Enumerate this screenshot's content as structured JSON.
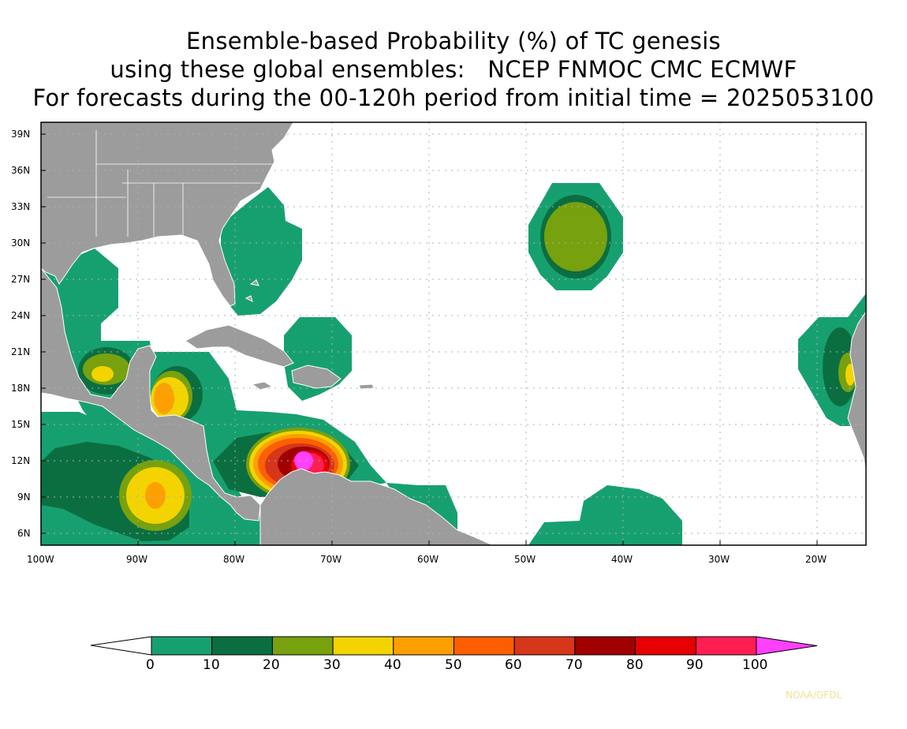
{
  "title": {
    "line1": "Ensemble-based Probability (%) of TC genesis",
    "line2": "using these global ensembles:   NCEP FNMOC CMC ECMWF",
    "line3": "For forecasts during the 00-120h period from initial time = 2025053100"
  },
  "map": {
    "lat_labels": [
      "39N",
      "36N",
      "33N",
      "30N",
      "27N",
      "24N",
      "21N",
      "18N",
      "15N",
      "12N",
      "9N",
      "6N"
    ],
    "lon_labels": [
      "100W",
      "90W",
      "80W",
      "70W",
      "60W",
      "50W",
      "40W",
      "30W",
      "20W"
    ],
    "land_color": "#9c9c9c",
    "ocean_color": "#ffffff",
    "grid": "dotted"
  },
  "colorbar": {
    "tick_labels": [
      "0",
      "10",
      "20",
      "30",
      "40",
      "50",
      "60",
      "70",
      "80",
      "90",
      "100"
    ],
    "colors": [
      "#17a06f",
      "#0b6e41",
      "#77a10e",
      "#f3d400",
      "#fca000",
      "#fc5e00",
      "#d6361a",
      "#a00000",
      "#e60000",
      "#ff1e50",
      "#ff40ff"
    ]
  },
  "credit": "NOAA/GFDL"
}
